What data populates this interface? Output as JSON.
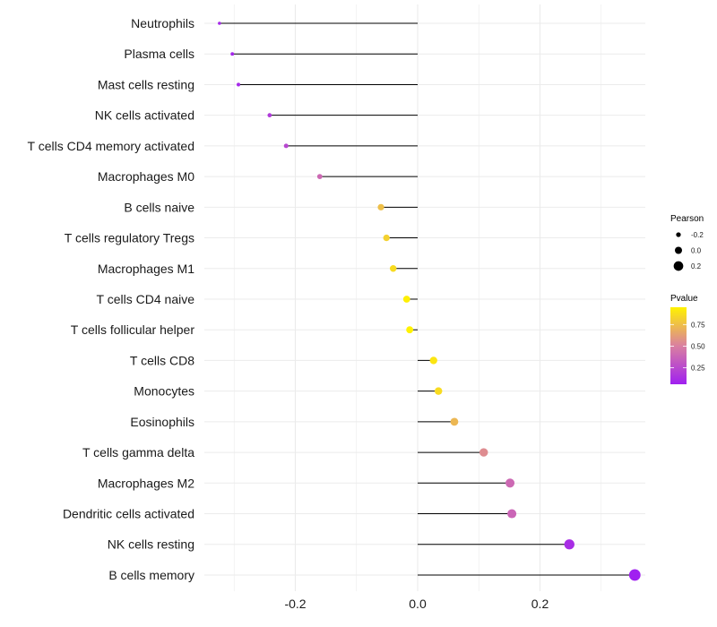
{
  "chart_data": {
    "type": "lollipop",
    "title": "",
    "xlabel": "",
    "ylabel": "",
    "xlim": [
      -0.34,
      0.37
    ],
    "x_ticks": [
      -0.2,
      0.0,
      0.2
    ],
    "x_tick_labels": [
      "-0.2",
      "0.0",
      "0.2"
    ],
    "grid": true,
    "categories": [
      "Neutrophils",
      "Plasma cells",
      "Mast cells resting",
      "NK cells activated",
      "T cells CD4 memory activated",
      "Macrophages M0",
      "B cells naive",
      "T cells regulatory  Tregs",
      "Macrophages M1",
      "T cells CD4 naive",
      "T cells follicular helper",
      "T cells CD8",
      "Monocytes",
      "Eosinophils",
      "T cells gamma delta",
      "Macrophages M2",
      "Dendritic cells activated",
      "NK cells resting",
      "B cells memory"
    ],
    "pearson": [
      -0.324,
      -0.303,
      -0.293,
      -0.242,
      -0.215,
      -0.16,
      -0.06,
      -0.051,
      -0.04,
      -0.018,
      -0.013,
      0.026,
      0.034,
      0.06,
      0.108,
      0.151,
      0.154,
      0.248,
      0.355
    ],
    "pvalue": [
      0.1,
      0.09,
      0.1,
      0.18,
      0.24,
      0.4,
      0.75,
      0.82,
      0.86,
      0.94,
      0.95,
      0.9,
      0.86,
      0.72,
      0.55,
      0.4,
      0.38,
      0.12,
      0.06
    ],
    "legend_size": {
      "title": "Pearson",
      "values": [
        -0.2,
        0.0,
        0.2
      ],
      "labels": [
        "-0.2",
        "0.0",
        "0.2"
      ]
    },
    "legend_color": {
      "title": "Pvalue",
      "range": [
        0.06,
        0.95
      ],
      "ticks": [
        0.25,
        0.5,
        0.75
      ],
      "labels": [
        "0.25",
        "0.50",
        "0.75"
      ],
      "low_color": "#A020F0",
      "mid_color": "#DA80A0",
      "high_color": "#FFF200"
    },
    "legend_position": "right"
  }
}
